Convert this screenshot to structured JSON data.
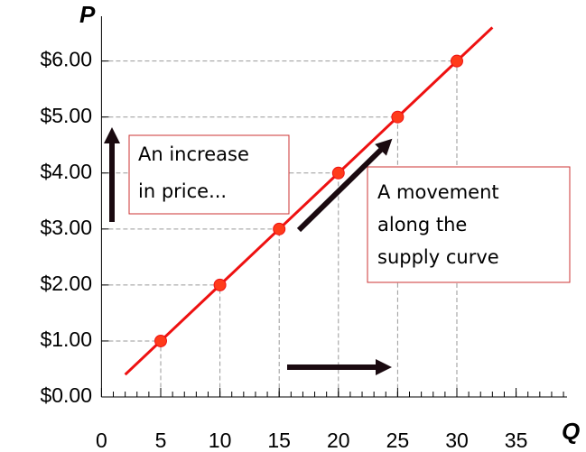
{
  "chart_data": {
    "type": "line",
    "x_label": "Q",
    "y_label": "P",
    "series": [
      {
        "x": [
          5,
          10,
          15,
          20,
          25,
          30
        ],
        "values": [
          1,
          2,
          3,
          4,
          5,
          6
        ],
        "color": "#ee1111",
        "marker_color": "#ff3b1a"
      }
    ],
    "xlim": [
      0,
      39.3
    ],
    "ylim": [
      0,
      6.8
    ],
    "xticks": [
      0,
      5,
      10,
      15,
      20,
      25,
      30,
      35
    ],
    "minor_xticks": [
      1,
      2,
      3,
      4,
      5,
      6,
      7,
      8,
      9,
      10,
      11,
      12,
      13,
      14,
      15,
      16,
      17,
      18,
      19,
      20,
      21,
      22,
      23,
      24,
      25,
      26,
      27,
      28,
      29,
      30,
      31,
      32,
      33,
      34,
      35,
      36,
      37,
      38,
      39
    ],
    "yticks": [
      {
        "value": 0,
        "label": "$0.00"
      },
      {
        "value": 1,
        "label": "$1.00"
      },
      {
        "value": 2,
        "label": "$2.00"
      },
      {
        "value": 3,
        "label": "$3.00"
      },
      {
        "value": 4,
        "label": "$4.00"
      },
      {
        "value": 5,
        "label": "$5.00"
      },
      {
        "value": 6,
        "label": "$6.00"
      }
    ],
    "drop_lines": true,
    "annotations": [
      {
        "lines": [
          "An increase",
          "in price..."
        ]
      },
      {
        "lines": [
          "A movement",
          "along the",
          "supply curve"
        ]
      }
    ]
  }
}
